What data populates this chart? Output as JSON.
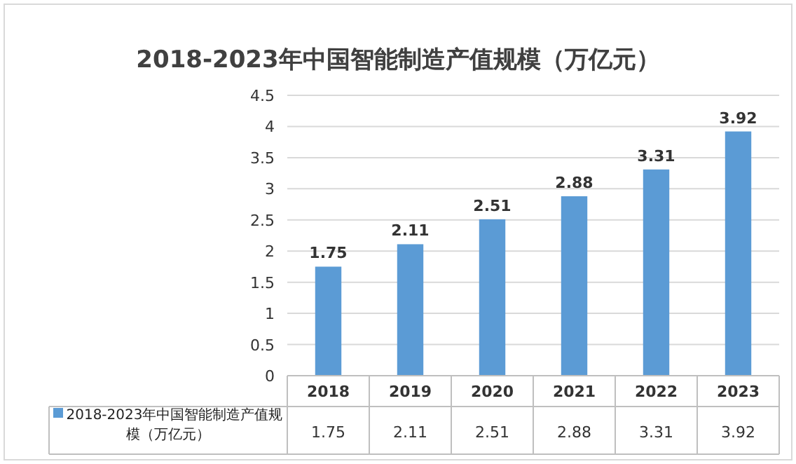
{
  "chart_data": {
    "type": "bar",
    "title": "2018-2023年中国智能制造产值规模（万亿元）",
    "categories": [
      "2018",
      "2019",
      "2020",
      "2021",
      "2022",
      "2023"
    ],
    "series": [
      {
        "name": "2018-2023年中国智能制造产值规模（万亿元）",
        "color": "#5b9bd5",
        "values": [
          1.75,
          2.11,
          2.51,
          2.88,
          3.31,
          3.92
        ]
      }
    ],
    "annotations": [
      "1.75",
      "2.11",
      "2.51",
      "2.88",
      "3.31",
      "3.92"
    ],
    "ylim": [
      0,
      4.5
    ],
    "yticks": [
      0,
      0.5,
      1,
      1.5,
      2,
      2.5,
      3,
      3.5,
      4,
      4.5
    ],
    "grid": "y",
    "data_labels": true,
    "legend": "bottom left"
  }
}
